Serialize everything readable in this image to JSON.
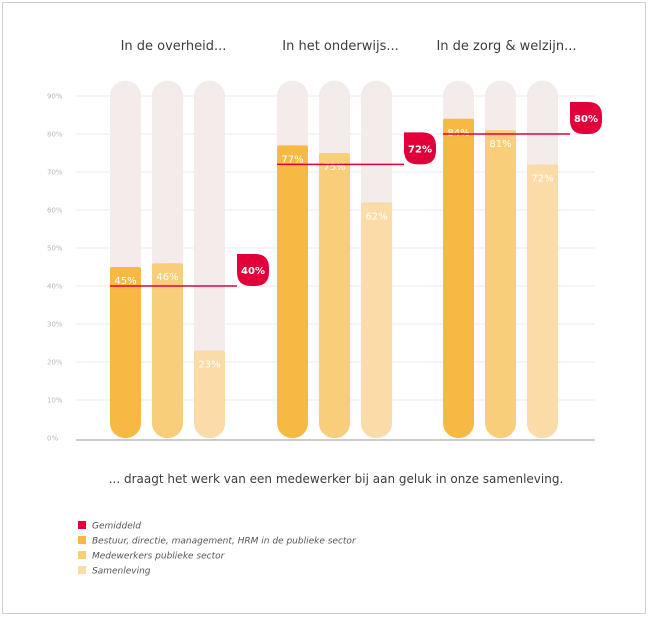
{
  "chart_data": {
    "type": "bar",
    "groups": [
      "In de overheid...",
      "In het onderwijs...",
      "In de zorg & welzijn..."
    ],
    "series": [
      {
        "name": "Bestuur, directie, management, HRM in de publieke sector",
        "values": [
          45,
          77,
          84
        ]
      },
      {
        "name": "Medewerkers publieke sector",
        "values": [
          46,
          75,
          81
        ]
      },
      {
        "name": "Samenleving",
        "values": [
          23,
          62,
          72
        ]
      }
    ],
    "average": {
      "name": "Gemiddeld",
      "values": [
        40,
        72,
        80
      ]
    },
    "value_labels": [
      [
        "45%",
        "46%",
        "23%"
      ],
      [
        "77%",
        "75%",
        "62%"
      ],
      [
        "84%",
        "81%",
        "72%"
      ]
    ],
    "average_labels": [
      "40%",
      "72%",
      "80%"
    ],
    "yticks": [
      0,
      10,
      20,
      30,
      40,
      50,
      60,
      70,
      80,
      90
    ],
    "ytick_labels": [
      "0%",
      "10%",
      "20%",
      "30%",
      "40%",
      "50%",
      "60%",
      "70%",
      "80%",
      "90%"
    ],
    "ylim": [
      0,
      90
    ],
    "bar_max": 94,
    "xlabel": "... draagt het werk van een medewerker bij aan geluk in onze samenleving.",
    "grid": true,
    "legend_position": "bottom-left"
  },
  "colors": {
    "series": [
      "#f6b944",
      "#f8ce7a",
      "#fbdba7"
    ],
    "background_bar": "#f3ecea",
    "average": "#e2003a",
    "grid": "#ebebeb",
    "axis": "#9a9a9a"
  },
  "legend": [
    {
      "label": "Gemiddeld",
      "color": "#e2003a"
    },
    {
      "label": "Bestuur, directie, management, HRM in de publieke sector",
      "color": "#f6b944"
    },
    {
      "label": "Medewerkers publieke sector",
      "color": "#f8ce7a"
    },
    {
      "label": "Samenleving",
      "color": "#fbdba7"
    }
  ]
}
